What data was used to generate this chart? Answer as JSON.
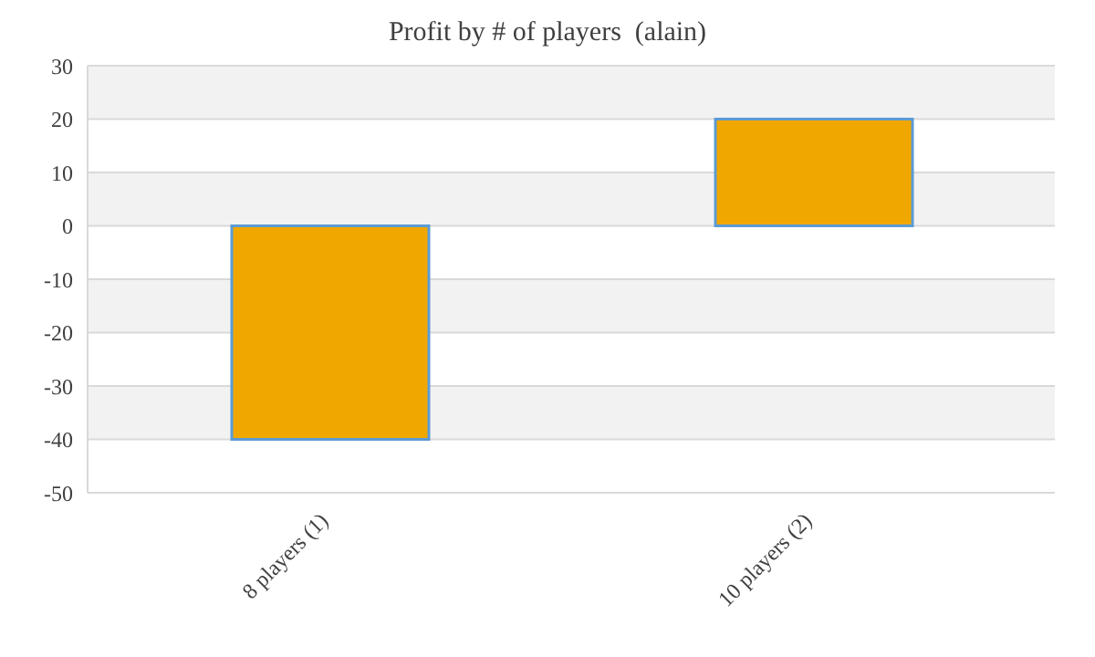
{
  "chart_data": {
    "type": "bar",
    "title": "Profit by # of players  (alain)",
    "categories": [
      "8 players (1)",
      "10 players (2)"
    ],
    "values": [
      -40,
      20
    ],
    "color": "#f0a800",
    "ylim": [
      -50,
      30
    ],
    "yticks": [
      -50,
      -40,
      -30,
      -20,
      -10,
      0,
      10,
      20,
      30
    ],
    "grid": "y"
  }
}
